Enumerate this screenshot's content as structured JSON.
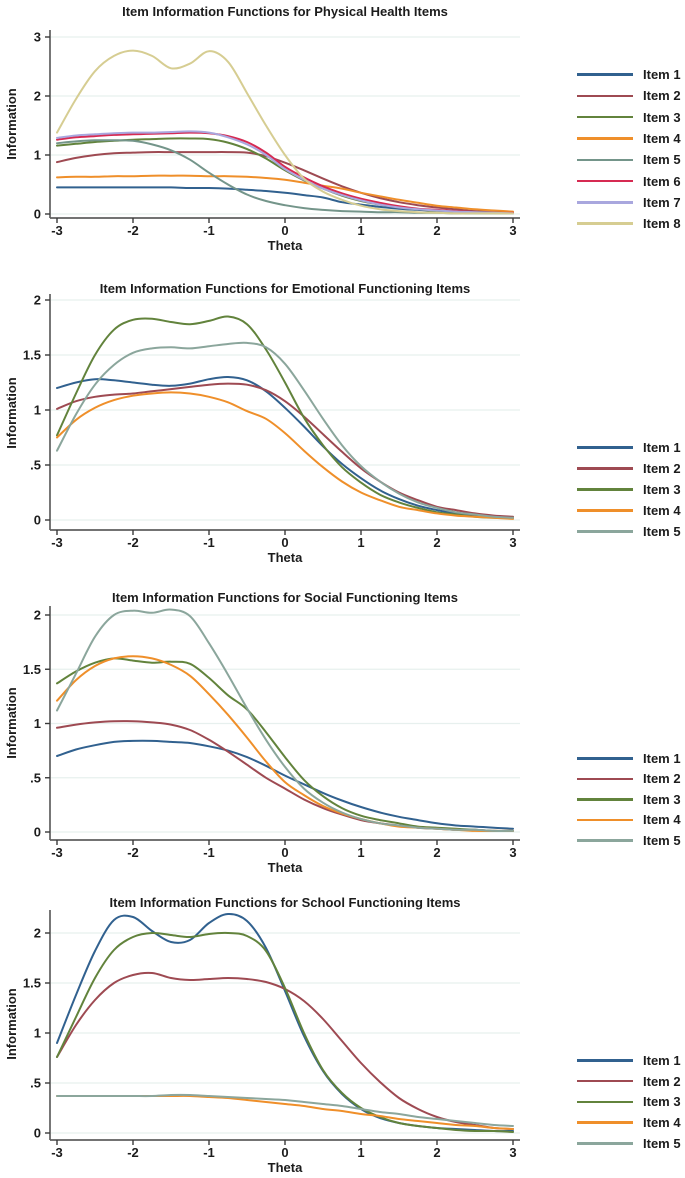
{
  "style": {
    "background": "#ffffff",
    "text_color": "#1c1c1c",
    "grid_color": "#e7f0ee",
    "axis_color": "#5f5f5f",
    "tick_color": "#3a3a3a",
    "palette": {
      "navy": "#31618f",
      "maroon": "#9e4a52",
      "forest_green": "#62833c",
      "orange": "#ef8f2a",
      "teal": "#74958a",
      "light_teal": "#8ba69c",
      "cranberry": "#d62a52",
      "lavender": "#a9a7de",
      "khaki": "#d6cd92"
    }
  },
  "chart_data": [
    {
      "type": "line",
      "title": "Item Information Functions for Physical Health Items",
      "xlabel": "Theta",
      "ylabel": "Information",
      "xlim": [
        -3,
        3
      ],
      "ylim": [
        0,
        3.2
      ],
      "grid": "horizontal",
      "legend_position": "right",
      "x_ticks": [
        -3,
        -2,
        -1,
        0,
        1,
        2,
        3
      ],
      "y_ticks": [
        {
          "label": "0",
          "value": 0
        },
        {
          "label": "1",
          "value": 1
        },
        {
          "label": "2",
          "value": 2
        },
        {
          "label": "3",
          "value": 3
        }
      ],
      "x_start": -3,
      "x_step": 0.25,
      "series": [
        {
          "name": "Item 1",
          "color": "#31618f",
          "values": [
            0.45,
            0.45,
            0.45,
            0.45,
            0.45,
            0.45,
            0.45,
            0.44,
            0.44,
            0.43,
            0.41,
            0.39,
            0.36,
            0.32,
            0.28,
            0.2,
            0.16,
            0.12,
            0.09,
            0.07,
            0.05,
            0.04,
            0.03,
            0.02,
            0.02
          ]
        },
        {
          "name": "Item 2",
          "color": "#9e4a52",
          "values": [
            0.88,
            0.95,
            1.0,
            1.03,
            1.04,
            1.05,
            1.05,
            1.05,
            1.05,
            1.05,
            1.04,
            0.98,
            0.87,
            0.74,
            0.6,
            0.47,
            0.36,
            0.27,
            0.2,
            0.15,
            0.11,
            0.08,
            0.05,
            0.04,
            0.03
          ]
        },
        {
          "name": "Item 3",
          "color": "#62833c",
          "values": [
            1.16,
            1.19,
            1.22,
            1.24,
            1.26,
            1.27,
            1.28,
            1.28,
            1.27,
            1.21,
            1.1,
            0.94,
            0.74,
            0.57,
            0.43,
            0.31,
            0.22,
            0.16,
            0.11,
            0.08,
            0.05,
            0.04,
            0.03,
            0.02,
            0.02
          ]
        },
        {
          "name": "Item 4",
          "color": "#ef8f2a",
          "values": [
            0.62,
            0.63,
            0.63,
            0.64,
            0.64,
            0.65,
            0.65,
            0.65,
            0.64,
            0.64,
            0.63,
            0.61,
            0.58,
            0.53,
            0.48,
            0.43,
            0.36,
            0.3,
            0.24,
            0.19,
            0.14,
            0.11,
            0.08,
            0.06,
            0.04
          ]
        },
        {
          "name": "Item 5",
          "color": "#74958a",
          "values": [
            1.2,
            1.23,
            1.25,
            1.25,
            1.24,
            1.18,
            1.08,
            0.92,
            0.7,
            0.5,
            0.33,
            0.22,
            0.15,
            0.1,
            0.07,
            0.05,
            0.04,
            0.03,
            0.03,
            0.02,
            0.02,
            0.01,
            0.01,
            0.01,
            0.01
          ]
        },
        {
          "name": "Item 6",
          "color": "#d62a52",
          "values": [
            1.26,
            1.3,
            1.32,
            1.34,
            1.35,
            1.36,
            1.37,
            1.38,
            1.37,
            1.32,
            1.22,
            1.04,
            0.8,
            0.62,
            0.47,
            0.35,
            0.26,
            0.19,
            0.13,
            0.09,
            0.07,
            0.05,
            0.03,
            0.02,
            0.02
          ]
        },
        {
          "name": "Item 7",
          "color": "#a9a7de",
          "values": [
            1.29,
            1.33,
            1.35,
            1.37,
            1.38,
            1.38,
            1.39,
            1.4,
            1.38,
            1.3,
            1.18,
            1.0,
            0.76,
            0.58,
            0.43,
            0.32,
            0.23,
            0.16,
            0.11,
            0.08,
            0.06,
            0.04,
            0.03,
            0.02,
            0.01
          ]
        },
        {
          "name": "Item 8",
          "color": "#d6cd92",
          "values": [
            1.38,
            1.95,
            2.42,
            2.68,
            2.77,
            2.68,
            2.47,
            2.55,
            2.76,
            2.58,
            2.05,
            1.5,
            1.0,
            0.6,
            0.38,
            0.24,
            0.14,
            0.08,
            0.05,
            0.03,
            0.02,
            0.01,
            0.01,
            0.01,
            0.01
          ]
        }
      ]
    },
    {
      "type": "line",
      "title": "Item Information Functions for Emotional Functioning Items",
      "xlabel": "Theta",
      "ylabel": "Information",
      "xlim": [
        -3,
        3
      ],
      "ylim": [
        0,
        2.1
      ],
      "grid": "horizontal",
      "legend_position": "right",
      "x_ticks": [
        -3,
        -2,
        -1,
        0,
        1,
        2,
        3
      ],
      "y_ticks": [
        {
          "label": "0",
          "value": 0
        },
        {
          "label": ".5",
          "value": 0.5
        },
        {
          "label": "1",
          "value": 1
        },
        {
          "label": "1.5",
          "value": 1.5
        },
        {
          "label": "2",
          "value": 2
        }
      ],
      "x_start": -3,
      "x_step": 0.25,
      "series": [
        {
          "name": "Item 1",
          "color": "#31618f",
          "values": [
            1.2,
            1.25,
            1.28,
            1.27,
            1.25,
            1.23,
            1.22,
            1.24,
            1.28,
            1.3,
            1.27,
            1.17,
            1.02,
            0.85,
            0.67,
            0.51,
            0.38,
            0.27,
            0.19,
            0.13,
            0.09,
            0.06,
            0.04,
            0.03,
            0.02
          ]
        },
        {
          "name": "Item 2",
          "color": "#9e4a52",
          "values": [
            1.01,
            1.08,
            1.12,
            1.14,
            1.15,
            1.17,
            1.19,
            1.21,
            1.23,
            1.24,
            1.23,
            1.18,
            1.08,
            0.94,
            0.78,
            0.62,
            0.47,
            0.35,
            0.25,
            0.18,
            0.12,
            0.09,
            0.06,
            0.04,
            0.03
          ]
        },
        {
          "name": "Item 3",
          "color": "#62833c",
          "values": [
            0.77,
            1.15,
            1.5,
            1.73,
            1.82,
            1.83,
            1.8,
            1.78,
            1.81,
            1.85,
            1.78,
            1.55,
            1.25,
            0.93,
            0.68,
            0.48,
            0.34,
            0.23,
            0.16,
            0.11,
            0.07,
            0.05,
            0.03,
            0.02,
            0.02
          ]
        },
        {
          "name": "Item 4",
          "color": "#ef8f2a",
          "values": [
            0.75,
            0.91,
            1.02,
            1.09,
            1.13,
            1.15,
            1.16,
            1.15,
            1.12,
            1.07,
            0.99,
            0.92,
            0.79,
            0.63,
            0.48,
            0.35,
            0.25,
            0.18,
            0.12,
            0.09,
            0.06,
            0.04,
            0.03,
            0.02,
            0.01
          ]
        },
        {
          "name": "Item 5",
          "color": "#8ba69c",
          "values": [
            0.63,
            0.96,
            1.23,
            1.41,
            1.52,
            1.56,
            1.57,
            1.56,
            1.58,
            1.6,
            1.61,
            1.57,
            1.42,
            1.18,
            0.92,
            0.68,
            0.49,
            0.35,
            0.24,
            0.16,
            0.11,
            0.07,
            0.05,
            0.03,
            0.02
          ]
        }
      ]
    },
    {
      "type": "line",
      "title": "Item Information Functions for Social Functioning Items",
      "xlabel": "Theta",
      "ylabel": "Information",
      "xlim": [
        -3,
        3
      ],
      "ylim": [
        0,
        2.1
      ],
      "grid": "horizontal",
      "legend_position": "right",
      "x_ticks": [
        -3,
        -2,
        -1,
        0,
        1,
        2,
        3
      ],
      "y_ticks": [
        {
          "label": "0",
          "value": 0
        },
        {
          "label": ".5",
          "value": 0.5
        },
        {
          "label": "1",
          "value": 1
        },
        {
          "label": "1.5",
          "value": 1.5
        },
        {
          "label": "2",
          "value": 2
        }
      ],
      "x_start": -3,
      "x_step": 0.25,
      "series": [
        {
          "name": "Item 1",
          "color": "#31618f",
          "values": [
            0.7,
            0.76,
            0.8,
            0.83,
            0.84,
            0.84,
            0.83,
            0.82,
            0.79,
            0.75,
            0.69,
            0.61,
            0.52,
            0.44,
            0.36,
            0.29,
            0.23,
            0.18,
            0.14,
            0.11,
            0.08,
            0.06,
            0.05,
            0.04,
            0.03
          ]
        },
        {
          "name": "Item 2",
          "color": "#9e4a52",
          "values": [
            0.96,
            0.99,
            1.01,
            1.02,
            1.02,
            1.01,
            0.99,
            0.94,
            0.85,
            0.74,
            0.62,
            0.5,
            0.4,
            0.3,
            0.22,
            0.16,
            0.11,
            0.08,
            0.06,
            0.04,
            0.03,
            0.02,
            0.02,
            0.01,
            0.01
          ]
        },
        {
          "name": "Item 3",
          "color": "#62833c",
          "values": [
            1.37,
            1.48,
            1.56,
            1.6,
            1.58,
            1.56,
            1.57,
            1.55,
            1.42,
            1.26,
            1.13,
            0.92,
            0.69,
            0.48,
            0.33,
            0.22,
            0.15,
            0.11,
            0.08,
            0.05,
            0.04,
            0.03,
            0.02,
            0.01,
            0.01
          ]
        },
        {
          "name": "Item 4",
          "color": "#ef8f2a",
          "values": [
            1.21,
            1.4,
            1.53,
            1.6,
            1.62,
            1.6,
            1.54,
            1.44,
            1.27,
            1.08,
            0.87,
            0.65,
            0.46,
            0.34,
            0.24,
            0.17,
            0.12,
            0.08,
            0.05,
            0.04,
            0.03,
            0.02,
            0.01,
            0.01,
            0.01
          ]
        },
        {
          "name": "Item 5",
          "color": "#8ba69c",
          "values": [
            1.12,
            1.46,
            1.8,
            2.0,
            2.04,
            2.02,
            2.05,
            1.99,
            1.74,
            1.45,
            1.14,
            0.85,
            0.6,
            0.4,
            0.27,
            0.18,
            0.12,
            0.08,
            0.06,
            0.04,
            0.03,
            0.02,
            0.02,
            0.01,
            0.01
          ]
        }
      ]
    },
    {
      "type": "line",
      "title": "Item Information Functions for School Functioning Items",
      "xlabel": "Theta",
      "ylabel": "Information",
      "xlim": [
        -3,
        3
      ],
      "ylim": [
        0,
        2.25
      ],
      "grid": "horizontal",
      "legend_position": "right",
      "x_ticks": [
        -3,
        -2,
        -1,
        0,
        1,
        2,
        3
      ],
      "y_ticks": [
        {
          "label": "0",
          "value": 0
        },
        {
          "label": ".5",
          "value": 0.5
        },
        {
          "label": "1",
          "value": 1
        },
        {
          "label": "1.5",
          "value": 1.5
        },
        {
          "label": "2",
          "value": 2
        }
      ],
      "x_start": -3,
      "x_step": 0.25,
      "series": [
        {
          "name": "Item 1",
          "color": "#31618f",
          "values": [
            0.9,
            1.38,
            1.82,
            2.13,
            2.16,
            2.02,
            1.91,
            1.93,
            2.1,
            2.19,
            2.12,
            1.85,
            1.42,
            0.97,
            0.62,
            0.39,
            0.24,
            0.15,
            0.1,
            0.07,
            0.05,
            0.04,
            0.03,
            0.02,
            0.02
          ]
        },
        {
          "name": "Item 2",
          "color": "#9e4a52",
          "values": [
            0.76,
            1.08,
            1.33,
            1.5,
            1.58,
            1.6,
            1.55,
            1.53,
            1.54,
            1.55,
            1.54,
            1.51,
            1.44,
            1.32,
            1.14,
            0.92,
            0.7,
            0.51,
            0.35,
            0.24,
            0.16,
            0.11,
            0.08,
            0.05,
            0.04
          ]
        },
        {
          "name": "Item 3",
          "color": "#62833c",
          "values": [
            0.76,
            1.16,
            1.55,
            1.83,
            1.96,
            2.0,
            1.98,
            1.96,
            1.99,
            2.0,
            1.97,
            1.82,
            1.45,
            1.0,
            0.63,
            0.4,
            0.25,
            0.16,
            0.1,
            0.07,
            0.05,
            0.03,
            0.02,
            0.02,
            0.01
          ]
        },
        {
          "name": "Item 4",
          "color": "#ef8f2a",
          "values": [
            0.37,
            0.37,
            0.37,
            0.37,
            0.37,
            0.37,
            0.37,
            0.37,
            0.36,
            0.35,
            0.33,
            0.31,
            0.29,
            0.27,
            0.24,
            0.22,
            0.19,
            0.17,
            0.14,
            0.12,
            0.1,
            0.08,
            0.07,
            0.05,
            0.04
          ]
        },
        {
          "name": "Item 5",
          "color": "#8ba69c",
          "values": [
            0.37,
            0.37,
            0.37,
            0.37,
            0.37,
            0.37,
            0.38,
            0.38,
            0.37,
            0.36,
            0.35,
            0.34,
            0.33,
            0.31,
            0.29,
            0.27,
            0.24,
            0.21,
            0.19,
            0.16,
            0.14,
            0.12,
            0.1,
            0.08,
            0.07
          ]
        }
      ]
    }
  ]
}
